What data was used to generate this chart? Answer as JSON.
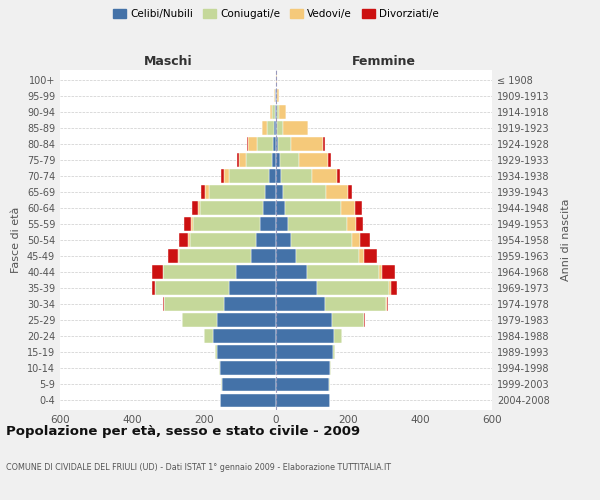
{
  "age_groups": [
    "0-4",
    "5-9",
    "10-14",
    "15-19",
    "20-24",
    "25-29",
    "30-34",
    "35-39",
    "40-44",
    "45-49",
    "50-54",
    "55-59",
    "60-64",
    "65-69",
    "70-74",
    "75-79",
    "80-84",
    "85-89",
    "90-94",
    "95-99",
    "100+"
  ],
  "birth_years": [
    "2004-2008",
    "1999-2003",
    "1994-1998",
    "1989-1993",
    "1984-1988",
    "1979-1983",
    "1974-1978",
    "1969-1973",
    "1964-1968",
    "1959-1963",
    "1954-1958",
    "1949-1953",
    "1944-1948",
    "1939-1943",
    "1934-1938",
    "1929-1933",
    "1924-1928",
    "1919-1923",
    "1914-1918",
    "1909-1913",
    "≤ 1908"
  ],
  "maschi": {
    "celibi": [
      155,
      150,
      155,
      165,
      175,
      165,
      145,
      130,
      110,
      70,
      55,
      45,
      35,
      30,
      20,
      12,
      7,
      5,
      3,
      2,
      1
    ],
    "coniugati": [
      0,
      3,
      2,
      5,
      25,
      95,
      165,
      205,
      205,
      200,
      185,
      185,
      175,
      155,
      110,
      70,
      45,
      20,
      8,
      2,
      0
    ],
    "vedovi": [
      0,
      0,
      0,
      0,
      0,
      0,
      0,
      0,
      0,
      2,
      4,
      5,
      8,
      12,
      15,
      20,
      25,
      15,
      5,
      2,
      0
    ],
    "divorziati": [
      0,
      0,
      0,
      0,
      0,
      2,
      5,
      10,
      30,
      28,
      25,
      20,
      15,
      10,
      8,
      5,
      3,
      0,
      0,
      0,
      0
    ]
  },
  "femmine": {
    "nubili": [
      150,
      148,
      150,
      158,
      160,
      155,
      135,
      115,
      85,
      55,
      42,
      32,
      25,
      20,
      15,
      10,
      6,
      4,
      3,
      2,
      1
    ],
    "coniugate": [
      0,
      3,
      2,
      5,
      22,
      90,
      170,
      200,
      200,
      175,
      170,
      165,
      155,
      120,
      85,
      55,
      35,
      15,
      5,
      2,
      0
    ],
    "vedove": [
      0,
      0,
      0,
      0,
      0,
      0,
      2,
      5,
      10,
      15,
      20,
      25,
      40,
      60,
      70,
      80,
      90,
      70,
      20,
      5,
      2
    ],
    "divorziate": [
      0,
      0,
      0,
      0,
      0,
      2,
      5,
      15,
      35,
      35,
      30,
      20,
      20,
      10,
      8,
      8,
      5,
      0,
      0,
      0,
      0
    ]
  },
  "colors": {
    "celibi": "#4472a8",
    "coniugati": "#c5d89a",
    "vedovi": "#f5c97a",
    "divorziati": "#cc1111"
  },
  "title": "Popolazione per età, sesso e stato civile - 2009",
  "subtitle": "COMUNE DI CIVIDALE DEL FRIULI (UD) - Dati ISTAT 1° gennaio 2009 - Elaborazione TUTTITALIA.IT",
  "xlabel_left": "Maschi",
  "xlabel_right": "Femmine",
  "ylabel_left": "Fasce di età",
  "ylabel_right": "Anni di nascita",
  "legend_labels": [
    "Celibi/Nubili",
    "Coniugati/e",
    "Vedovi/e",
    "Divorziati/e"
  ],
  "xlim": 600,
  "background_color": "#f0f0f0",
  "plot_bg": "#ffffff"
}
